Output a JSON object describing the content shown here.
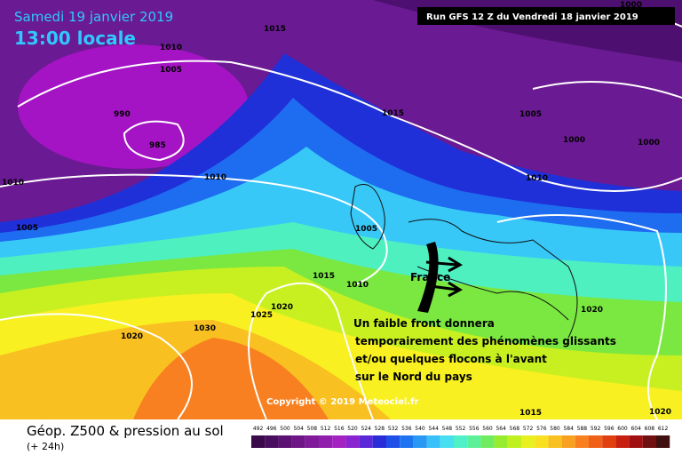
{
  "header": {
    "date": "Samedi 19 janvier 2019",
    "time": "13:00 locale",
    "run": "Run GFS 12 Z du Vendredi 18 janvier 2019"
  },
  "footer": {
    "title": "Géop. Z500 & pression au sol",
    "lead": "(+ 24h)",
    "copyright": "Copyright © 2019 Meteociel.fr"
  },
  "annotation": {
    "country": "France",
    "lines": [
      "Un faible front donnera",
      "temporairement des phénomènes glissants",
      "et/ou quelques flocons à l'avant",
      "sur le Nord du pays"
    ]
  },
  "isobar_labels": [
    "1015",
    "1010",
    "1005",
    "990",
    "985",
    "1010",
    "1010",
    "1005",
    "1015",
    "1005",
    "1000",
    "1000",
    "1010",
    "1005",
    "1015",
    "1010",
    "1020",
    "1025",
    "1030",
    "1020",
    "1020",
    "1015",
    "1020",
    "1000"
  ],
  "scale": {
    "labels": [
      "492",
      "496",
      "500",
      "504",
      "508",
      "512",
      "516",
      "520",
      "524",
      "528",
      "532",
      "536",
      "540",
      "544",
      "548",
      "552",
      "556",
      "560",
      "564",
      "568",
      "572",
      "576",
      "580",
      "584",
      "588",
      "592",
      "596",
      "600",
      "604",
      "608",
      "612"
    ],
    "colors": [
      "#3a0a4a",
      "#4a0e5e",
      "#5c1272",
      "#6e1686",
      "#801a9a",
      "#921eae",
      "#a422c2",
      "#8a24d0",
      "#5a28d8",
      "#2a2cd8",
      "#1e50e8",
      "#1e74f0",
      "#2898f4",
      "#38c0f8",
      "#48e0f0",
      "#50f0c8",
      "#5cf098",
      "#70ec60",
      "#98ec30",
      "#c0f020",
      "#e8f020",
      "#f8e020",
      "#f8c020",
      "#f8a020",
      "#f88020",
      "#f06018",
      "#e04010",
      "#c82010",
      "#a01010",
      "#701010",
      "#401010"
    ]
  }
}
